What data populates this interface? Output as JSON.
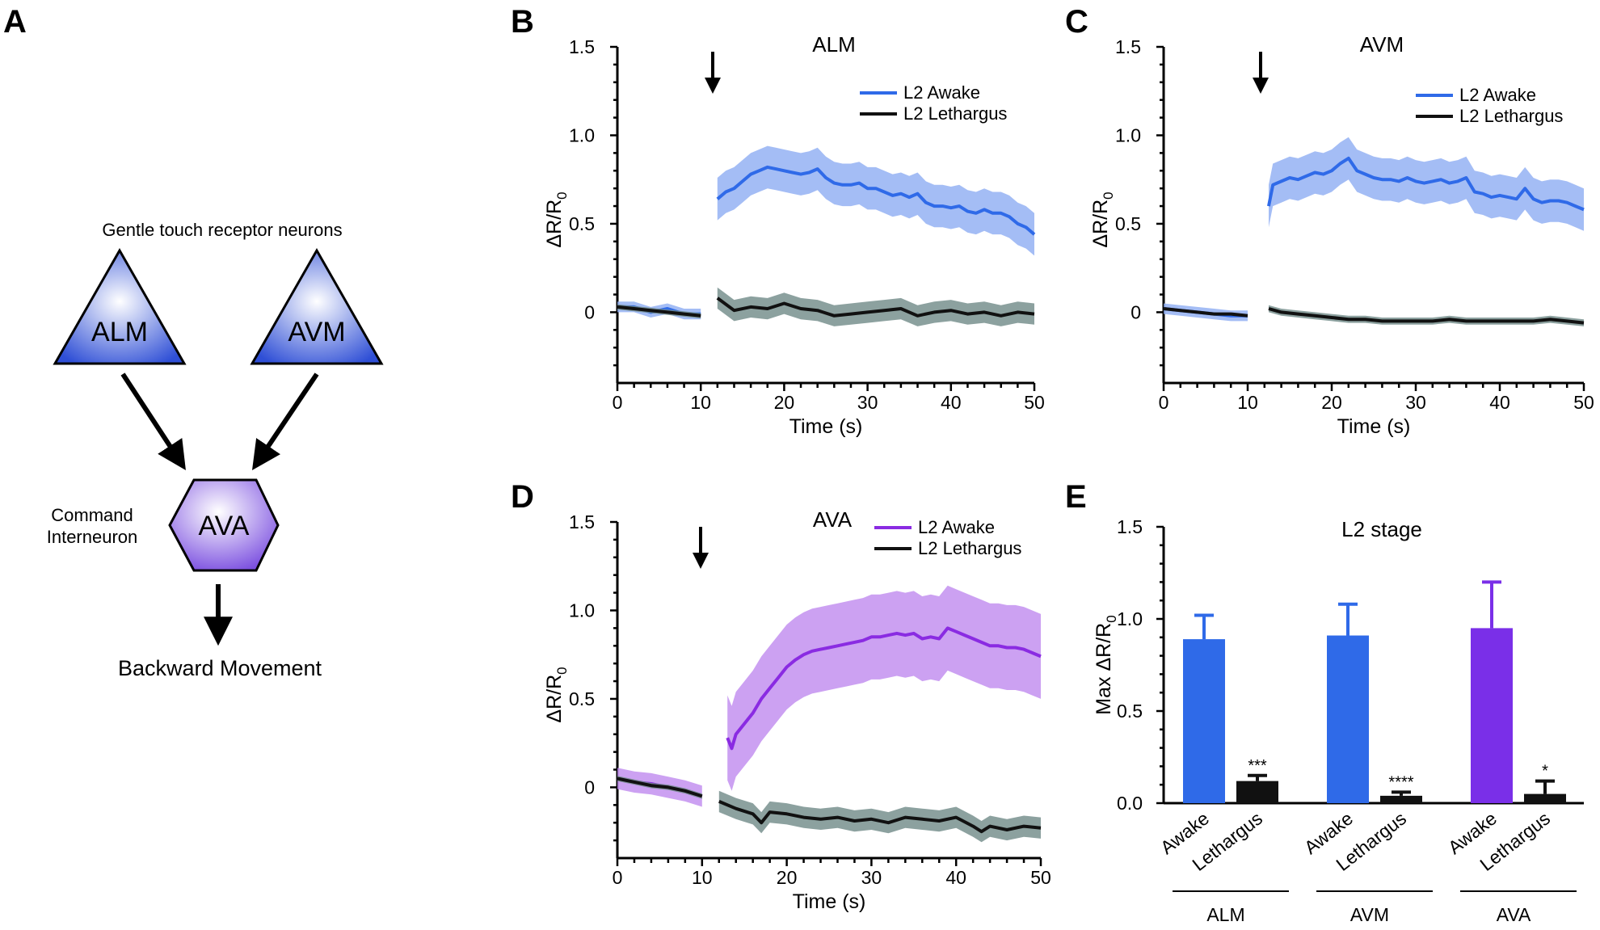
{
  "panels": {
    "A": "A",
    "B": "B",
    "C": "C",
    "D": "D",
    "E": "E"
  },
  "diagram": {
    "receptor_title": "Gentle touch receptor neurons",
    "node_alm": "ALM",
    "node_avm": "AVM",
    "node_ava": "AVA",
    "command_line1": "Command",
    "command_line2": "Interneuron",
    "output": "Backward Movement",
    "colors": {
      "receptor": "#2f4fd6",
      "interneuron": "#7b4fe0"
    }
  },
  "chart_data": [
    {
      "panel": "B",
      "type": "line",
      "title": "ALM",
      "xlabel": "Time (s)",
      "ylabel_main": "ΔR/R",
      "ylabel_sub": "0",
      "xlim": [
        0,
        50
      ],
      "ylim": [
        -0.4,
        1.5
      ],
      "xticks": [
        "0",
        "10",
        "20",
        "30",
        "40",
        "50"
      ],
      "yticks": [
        "0",
        "0.5",
        "1.0",
        "1.5"
      ],
      "stimulus_time": 11.5,
      "series": [
        {
          "name": "L2 Awake",
          "color": "#2f6ae8",
          "pre": [
            [
              0,
              0.03
            ],
            [
              2,
              0.03
            ],
            [
              4,
              0.0
            ],
            [
              6,
              0.02
            ],
            [
              8,
              -0.01
            ],
            [
              10,
              -0.01
            ]
          ],
          "post": [
            [
              12,
              0.64
            ],
            [
              13,
              0.68
            ],
            [
              14,
              0.7
            ],
            [
              15,
              0.74
            ],
            [
              16,
              0.78
            ],
            [
              17,
              0.8
            ],
            [
              18,
              0.82
            ],
            [
              19,
              0.81
            ],
            [
              20,
              0.8
            ],
            [
              21,
              0.79
            ],
            [
              22,
              0.78
            ],
            [
              23,
              0.79
            ],
            [
              24,
              0.81
            ],
            [
              25,
              0.76
            ],
            [
              26,
              0.73
            ],
            [
              27,
              0.72
            ],
            [
              28,
              0.72
            ],
            [
              29,
              0.73
            ],
            [
              30,
              0.7
            ],
            [
              31,
              0.7
            ],
            [
              32,
              0.68
            ],
            [
              33,
              0.66
            ],
            [
              34,
              0.67
            ],
            [
              35,
              0.65
            ],
            [
              36,
              0.67
            ],
            [
              37,
              0.62
            ],
            [
              38,
              0.6
            ],
            [
              39,
              0.6
            ],
            [
              40,
              0.59
            ],
            [
              41,
              0.6
            ],
            [
              42,
              0.57
            ],
            [
              43,
              0.56
            ],
            [
              44,
              0.58
            ],
            [
              45,
              0.56
            ],
            [
              46,
              0.56
            ],
            [
              47,
              0.54
            ],
            [
              48,
              0.5
            ],
            [
              49,
              0.48
            ],
            [
              50,
              0.44
            ]
          ],
          "err": 0.12
        },
        {
          "name": "L2 Lethargus",
          "color": "#111111",
          "pre": [
            [
              0,
              0.03
            ],
            [
              2,
              0.02
            ],
            [
              4,
              0.01
            ],
            [
              6,
              0.0
            ],
            [
              8,
              -0.01
            ],
            [
              10,
              -0.02
            ]
          ],
          "post": [
            [
              12,
              0.08
            ],
            [
              14,
              0.01
            ],
            [
              16,
              0.03
            ],
            [
              18,
              0.02
            ],
            [
              20,
              0.05
            ],
            [
              22,
              0.02
            ],
            [
              24,
              0.01
            ],
            [
              26,
              -0.02
            ],
            [
              28,
              -0.01
            ],
            [
              30,
              0.0
            ],
            [
              32,
              0.01
            ],
            [
              34,
              0.02
            ],
            [
              36,
              -0.02
            ],
            [
              38,
              0.0
            ],
            [
              40,
              0.01
            ],
            [
              42,
              -0.01
            ],
            [
              44,
              0.0
            ],
            [
              46,
              -0.02
            ],
            [
              48,
              0.0
            ],
            [
              50,
              -0.01
            ]
          ],
          "err": 0.06
        }
      ]
    },
    {
      "panel": "C",
      "type": "line",
      "title": "AVM",
      "xlabel": "Time (s)",
      "ylabel_main": "ΔR/R",
      "ylabel_sub": "0",
      "xlim": [
        0,
        50
      ],
      "ylim": [
        -0.4,
        1.5
      ],
      "xticks": [
        "0",
        "10",
        "20",
        "30",
        "40",
        "50"
      ],
      "yticks": [
        "0",
        "0.5",
        "1.0",
        "1.5"
      ],
      "stimulus_time": 11.5,
      "series": [
        {
          "name": "L2 Awake",
          "color": "#2f6ae8",
          "pre": [
            [
              0,
              0.02
            ],
            [
              2,
              0.01
            ],
            [
              4,
              0.0
            ],
            [
              6,
              -0.01
            ],
            [
              8,
              -0.02
            ],
            [
              10,
              -0.02
            ]
          ],
          "post": [
            [
              12.5,
              0.6
            ],
            [
              13,
              0.72
            ],
            [
              14,
              0.74
            ],
            [
              15,
              0.76
            ],
            [
              16,
              0.75
            ],
            [
              17,
              0.77
            ],
            [
              18,
              0.79
            ],
            [
              19,
              0.78
            ],
            [
              20,
              0.8
            ],
            [
              21,
              0.84
            ],
            [
              22,
              0.87
            ],
            [
              23,
              0.8
            ],
            [
              24,
              0.78
            ],
            [
              25,
              0.76
            ],
            [
              26,
              0.75
            ],
            [
              27,
              0.75
            ],
            [
              28,
              0.74
            ],
            [
              29,
              0.76
            ],
            [
              30,
              0.74
            ],
            [
              31,
              0.73
            ],
            [
              32,
              0.74
            ],
            [
              33,
              0.75
            ],
            [
              34,
              0.73
            ],
            [
              35,
              0.74
            ],
            [
              36,
              0.76
            ],
            [
              37,
              0.68
            ],
            [
              38,
              0.67
            ],
            [
              39,
              0.65
            ],
            [
              40,
              0.66
            ],
            [
              41,
              0.65
            ],
            [
              42,
              0.64
            ],
            [
              43,
              0.7
            ],
            [
              44,
              0.64
            ],
            [
              45,
              0.62
            ],
            [
              46,
              0.63
            ],
            [
              47,
              0.63
            ],
            [
              48,
              0.62
            ],
            [
              49,
              0.6
            ],
            [
              50,
              0.58
            ]
          ],
          "err": 0.12
        },
        {
          "name": "L2 Lethargus",
          "color": "#111111",
          "pre": [
            [
              0,
              0.02
            ],
            [
              2,
              0.01
            ],
            [
              4,
              0.0
            ],
            [
              6,
              -0.01
            ],
            [
              8,
              -0.01
            ],
            [
              10,
              -0.02
            ]
          ],
          "post": [
            [
              12.5,
              0.02
            ],
            [
              14,
              0.0
            ],
            [
              16,
              -0.01
            ],
            [
              18,
              -0.02
            ],
            [
              20,
              -0.03
            ],
            [
              22,
              -0.04
            ],
            [
              24,
              -0.04
            ],
            [
              26,
              -0.05
            ],
            [
              28,
              -0.05
            ],
            [
              30,
              -0.05
            ],
            [
              32,
              -0.05
            ],
            [
              34,
              -0.04
            ],
            [
              36,
              -0.05
            ],
            [
              38,
              -0.05
            ],
            [
              40,
              -0.05
            ],
            [
              42,
              -0.05
            ],
            [
              44,
              -0.05
            ],
            [
              46,
              -0.04
            ],
            [
              48,
              -0.05
            ],
            [
              50,
              -0.06
            ]
          ],
          "err": 0.02
        }
      ]
    },
    {
      "panel": "D",
      "type": "line",
      "title": "AVA",
      "xlabel": "Time (s)",
      "ylabel_main": "ΔR/R",
      "ylabel_sub": "0",
      "xlim": [
        0,
        50
      ],
      "ylim": [
        -0.4,
        1.5
      ],
      "xticks": [
        "0",
        "10",
        "20",
        "30",
        "40",
        "50"
      ],
      "yticks": [
        "0",
        "0.5",
        "1.0",
        "1.5"
      ],
      "stimulus_time": 10,
      "series": [
        {
          "name": "L2 Awake",
          "color": "#8a2be2",
          "pre": [
            [
              0,
              0.05
            ],
            [
              2,
              0.03
            ],
            [
              4,
              0.02
            ],
            [
              6,
              0.0
            ],
            [
              8,
              -0.02
            ],
            [
              10,
              -0.05
            ]
          ],
          "post": [
            [
              13,
              0.28
            ],
            [
              13.5,
              0.22
            ],
            [
              14,
              0.3
            ],
            [
              15,
              0.36
            ],
            [
              16,
              0.42
            ],
            [
              17,
              0.5
            ],
            [
              18,
              0.56
            ],
            [
              19,
              0.62
            ],
            [
              20,
              0.68
            ],
            [
              21,
              0.72
            ],
            [
              22,
              0.75
            ],
            [
              23,
              0.77
            ],
            [
              24,
              0.78
            ],
            [
              25,
              0.79
            ],
            [
              26,
              0.8
            ],
            [
              27,
              0.81
            ],
            [
              28,
              0.82
            ],
            [
              29,
              0.83
            ],
            [
              30,
              0.85
            ],
            [
              31,
              0.85
            ],
            [
              32,
              0.86
            ],
            [
              33,
              0.87
            ],
            [
              34,
              0.86
            ],
            [
              35,
              0.87
            ],
            [
              36,
              0.84
            ],
            [
              37,
              0.85
            ],
            [
              38,
              0.84
            ],
            [
              39,
              0.9
            ],
            [
              40,
              0.88
            ],
            [
              41,
              0.86
            ],
            [
              42,
              0.84
            ],
            [
              43,
              0.82
            ],
            [
              44,
              0.8
            ],
            [
              45,
              0.8
            ],
            [
              46,
              0.79
            ],
            [
              47,
              0.79
            ],
            [
              48,
              0.78
            ],
            [
              49,
              0.76
            ],
            [
              50,
              0.74
            ]
          ],
          "err": 0.24
        },
        {
          "name": "L2 Lethargus",
          "color": "#111111",
          "pre": [
            [
              0,
              0.05
            ],
            [
              2,
              0.03
            ],
            [
              4,
              0.01
            ],
            [
              6,
              0.0
            ],
            [
              8,
              -0.02
            ],
            [
              10,
              -0.05
            ]
          ],
          "post": [
            [
              12,
              -0.08
            ],
            [
              14,
              -0.12
            ],
            [
              16,
              -0.15
            ],
            [
              17,
              -0.2
            ],
            [
              18,
              -0.14
            ],
            [
              20,
              -0.15
            ],
            [
              22,
              -0.17
            ],
            [
              24,
              -0.18
            ],
            [
              26,
              -0.17
            ],
            [
              28,
              -0.19
            ],
            [
              30,
              -0.18
            ],
            [
              32,
              -0.2
            ],
            [
              34,
              -0.17
            ],
            [
              36,
              -0.18
            ],
            [
              38,
              -0.19
            ],
            [
              40,
              -0.17
            ],
            [
              42,
              -0.22
            ],
            [
              43,
              -0.25
            ],
            [
              44,
              -0.22
            ],
            [
              46,
              -0.24
            ],
            [
              48,
              -0.22
            ],
            [
              50,
              -0.23
            ]
          ],
          "err": 0.06
        }
      ]
    },
    {
      "panel": "E",
      "type": "bar",
      "title": "L2 stage",
      "ylabel_main": "Max ΔR/R",
      "ylabel_sub": "0",
      "ylim": [
        0,
        1.5
      ],
      "yticks": [
        "0.0",
        "0.5",
        "1.0",
        "1.5"
      ],
      "categories": [
        "Awake",
        "Lethargus",
        "Awake",
        "Lethargus",
        "Awake",
        "Lethargus"
      ],
      "groups": [
        "ALM",
        "AVM",
        "AVA"
      ],
      "values": [
        0.89,
        0.12,
        0.91,
        0.04,
        0.95,
        0.05
      ],
      "errors": [
        0.13,
        0.03,
        0.17,
        0.02,
        0.25,
        0.07
      ],
      "colors": [
        "#2f6ae8",
        "#111111",
        "#2f6ae8",
        "#111111",
        "#7a2fe8",
        "#111111"
      ],
      "significance": [
        "",
        "***",
        "",
        "****",
        "",
        "*"
      ]
    }
  ]
}
